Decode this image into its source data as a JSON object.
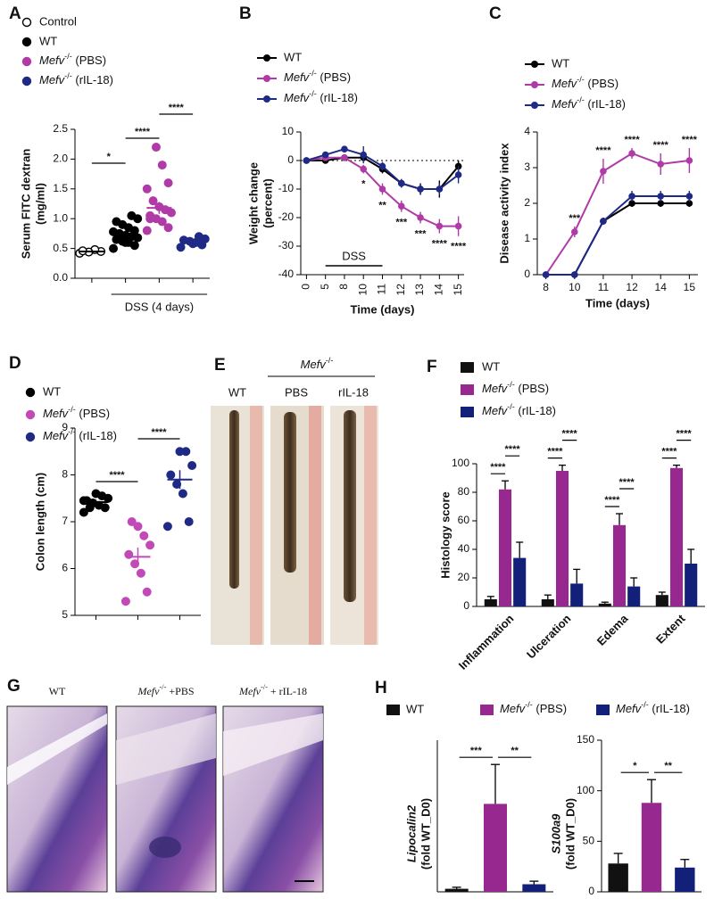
{
  "chart_data": [
    {
      "type": "strip",
      "panel": "A",
      "ylabel": [
        "Serum FITC dextran",
        "(mg/ml)"
      ],
      "xlabel": "DSS (4 days)",
      "ylim": [
        0,
        2.5
      ],
      "yticks": [
        {
          "value": 0,
          "label": "0.0"
        },
        0.5,
        {
          "value": 1,
          "label": "1.0"
        },
        1.5,
        {
          "value": 2,
          "label": "2.0"
        },
        2.5
      ],
      "series": [
        {
          "name": "Control",
          "color": "#000000",
          "open": true,
          "values": [
            0.42,
            0.45,
            0.48,
            0.44,
            0.46
          ],
          "mean": 0.45,
          "sem": 0.02
        },
        {
          "name": "WT",
          "color": "#000000",
          "values": [
            0.5,
            0.55,
            0.6,
            0.62,
            0.65,
            0.68,
            0.7,
            0.72,
            0.75,
            0.78,
            0.8,
            0.85,
            0.9,
            0.95,
            1.0,
            1.05,
            0.6,
            0.7
          ],
          "mean": 0.75,
          "sem": 0.04
        },
        {
          "name": "Mefv-/- (PBS)",
          "color": "#b03aa6",
          "values": [
            0.8,
            0.85,
            0.95,
            1.0,
            1.05,
            1.1,
            1.15,
            1.2,
            1.3,
            1.5,
            1.6,
            1.9,
            2.2,
            1.0
          ],
          "mean": 1.18,
          "sem": 0.1
        },
        {
          "name": "Mefv-/- (rIL-18)",
          "color": "#1f2a86",
          "values": [
            0.52,
            0.56,
            0.6,
            0.62,
            0.64,
            0.66,
            0.7,
            0.58
          ],
          "mean": 0.62,
          "sem": 0.03
        }
      ],
      "significance": [
        "*",
        "****",
        "****"
      ]
    },
    {
      "type": "line",
      "panel": "B",
      "ylabel": [
        "Weight change",
        "(percent)"
      ],
      "xlabel": "Time (days)",
      "categories": [
        "0",
        "5",
        "8",
        "10",
        "11",
        "12",
        "13",
        "14",
        "15"
      ],
      "ylim": [
        -40,
        10
      ],
      "yticks": [
        10,
        0,
        -10,
        -20,
        -30,
        -40
      ],
      "reference_line": 0,
      "series": [
        {
          "name": "WT",
          "color": "#000000",
          "values": [
            0,
            0,
            1,
            1,
            -3,
            -8,
            -10,
            -10,
            -2
          ],
          "errors": [
            1,
            1,
            1,
            1,
            1.5,
            1.5,
            2,
            3,
            2
          ]
        },
        {
          "name": "Mefv-/- (PBS)",
          "color": "#b03aa6",
          "values": [
            0,
            1,
            1,
            -3,
            -10,
            -16,
            -20,
            -23,
            -23
          ],
          "errors": [
            1,
            1,
            1,
            1.5,
            2,
            2,
            2,
            2.5,
            3.5
          ]
        },
        {
          "name": "Mefv-/- (rIL-18)",
          "color": "#1f2a86",
          "values": [
            0,
            2,
            4,
            2,
            -2,
            -8,
            -10,
            -10,
            -5
          ],
          "errors": [
            1,
            1,
            1,
            3,
            1.5,
            1.5,
            2,
            2,
            3
          ]
        }
      ],
      "significance": [
        null,
        null,
        null,
        "*",
        "**",
        "***",
        "***",
        "****",
        "****"
      ],
      "dss": {
        "label": "DSS",
        "from": "5",
        "to": "11"
      }
    },
    {
      "type": "line",
      "panel": "C",
      "ylabel": [
        "Disease activity index"
      ],
      "xlabel": "Time (days)",
      "categories": [
        "8",
        "10",
        "11",
        "12",
        "14",
        "15"
      ],
      "ylim": [
        0,
        4
      ],
      "yticks": [
        0,
        1,
        2,
        3,
        4
      ],
      "series": [
        {
          "name": "WT",
          "color": "#000000",
          "values": [
            0,
            0,
            1.5,
            2,
            2,
            2
          ],
          "errors": [
            0,
            0,
            0.1,
            0.1,
            0.1,
            0.1
          ]
        },
        {
          "name": "Mefv-/- (PBS)",
          "color": "#b03aa6",
          "values": [
            0,
            1.2,
            2.9,
            3.4,
            3.1,
            3.2
          ],
          "errors": [
            0,
            0.15,
            0.35,
            0.15,
            0.3,
            0.35
          ]
        },
        {
          "name": "Mefv-/- (rIL-18)",
          "color": "#1f2a86",
          "values": [
            0,
            0,
            1.5,
            2.2,
            2.2,
            2.2
          ],
          "errors": [
            0,
            0,
            0.1,
            0.15,
            0.15,
            0.15
          ]
        }
      ],
      "significance": [
        null,
        "***",
        "****",
        "****",
        "****",
        "****"
      ]
    },
    {
      "type": "strip",
      "panel": "D",
      "ylabel": [
        "Colon length (cm)"
      ],
      "ylim": [
        5,
        9
      ],
      "yticks": [
        5,
        6,
        7,
        8,
        9
      ],
      "series": [
        {
          "name": "WT",
          "color": "#000000",
          "values": [
            7.2,
            7.3,
            7.35,
            7.4,
            7.45,
            7.5,
            7.55,
            7.6,
            7.3,
            7.45
          ],
          "mean": 7.42,
          "sem": 0.05
        },
        {
          "name": "Mefv-/- (PBS)",
          "color": "#c24ab8",
          "values": [
            5.3,
            5.5,
            5.9,
            6.1,
            6.3,
            6.5,
            6.7,
            6.9,
            7.0
          ],
          "mean": 6.25,
          "sem": 0.2
        },
        {
          "name": "Mefv-/- (rIL-18)",
          "color": "#1f2a86",
          "values": [
            6.9,
            7.0,
            7.6,
            7.8,
            8.0,
            8.2,
            8.5,
            8.5
          ],
          "mean": 7.9,
          "sem": 0.2
        }
      ],
      "significance": [
        "****",
        "****"
      ]
    },
    {
      "type": "bar",
      "panel": "F",
      "ylabel": [
        "Histology score"
      ],
      "categories": [
        "Inflammation",
        "Ulceration",
        "Edema",
        "Extent"
      ],
      "ylim": [
        0,
        100
      ],
      "yticks": [
        0,
        20,
        40,
        60,
        80,
        100
      ],
      "series": [
        {
          "name": "WT",
          "color": "#111111",
          "values": [
            5,
            5,
            2,
            8
          ],
          "errors": [
            2,
            3,
            1,
            2
          ]
        },
        {
          "name": "Mefv-/- (PBS)",
          "color": "#96288f",
          "values": [
            82,
            95,
            57,
            97
          ],
          "errors": [
            6,
            4,
            8,
            2
          ]
        },
        {
          "name": "Mefv-/- (rIL-18)",
          "color": "#12207a",
          "values": [
            34,
            16,
            14,
            30
          ],
          "errors": [
            11,
            10,
            6,
            10
          ]
        }
      ],
      "significance": [
        [
          "****",
          "****"
        ],
        [
          "****",
          "****"
        ],
        [
          "****",
          "****"
        ],
        [
          "****",
          "****"
        ]
      ]
    },
    {
      "type": "bar-panels",
      "panel": "H",
      "series": [
        {
          "name": "WT",
          "color": "#111111"
        },
        {
          "name": "Mefv-/- (PBS)",
          "color": "#96288f"
        },
        {
          "name": "Mefv-/- (rIL-18)",
          "color": "#12207a"
        }
      ],
      "subplots": [
        {
          "ylabel": [
            "Lipocalin2",
            "(fold WT_D0)"
          ],
          "ylim": [
            0,
            50
          ],
          "values": [
            1,
            29,
            2.5
          ],
          "errors": [
            0.5,
            13,
            1
          ],
          "significance": [
            "***",
            "**"
          ]
        },
        {
          "ylabel": [
            "S100a9",
            "(fold WT_D0)"
          ],
          "ylim": [
            0,
            150
          ],
          "yticks": [
            0,
            50,
            100,
            150
          ],
          "values": [
            28,
            88,
            24
          ],
          "errors": [
            10,
            23,
            8
          ],
          "significance": [
            "*",
            "**"
          ]
        }
      ]
    }
  ],
  "photos": [
    {
      "panel": "E",
      "group_label": "Mefv-/-",
      "labels": [
        "WT",
        "PBS",
        "rIL-18"
      ]
    },
    {
      "panel": "G",
      "labels": [
        "WT",
        "Mefv-/- +PBS",
        "Mefv-/- + rIL-18"
      ]
    }
  ]
}
